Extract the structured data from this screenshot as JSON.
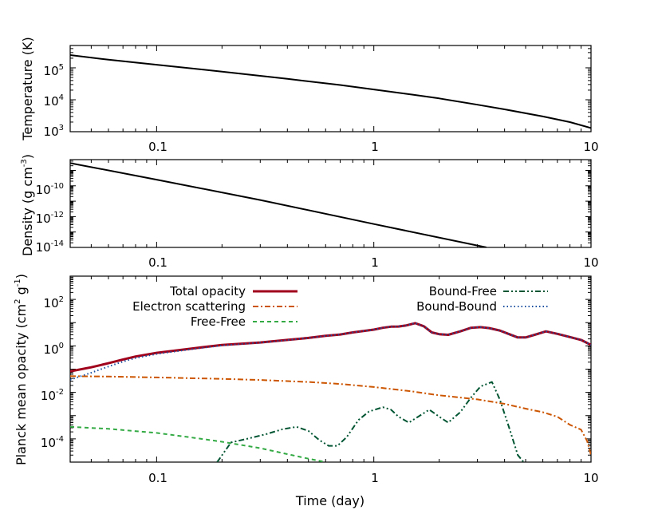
{
  "chart_data": [
    {
      "type": "line",
      "id": "temperature",
      "ylabel": "Temperature (K)",
      "xscale": "log",
      "yscale": "log",
      "xlim": [
        0.04,
        10
      ],
      "ylim": [
        1000,
        500000
      ],
      "xticks": [
        {
          "value": 0.1,
          "label": "0.1"
        },
        {
          "value": 1,
          "label": "1"
        },
        {
          "value": 10,
          "label": "10"
        }
      ],
      "yticks": [
        {
          "value": 1000,
          "base": "10",
          "exp": "3"
        },
        {
          "value": 10000,
          "base": "10",
          "exp": "4"
        },
        {
          "value": 100000,
          "base": "10",
          "exp": "5"
        }
      ],
      "series": [
        {
          "color": "#000000",
          "style": "solid",
          "x": [
            0.04,
            0.06,
            0.1,
            0.2,
            0.4,
            0.7,
            1.0,
            1.5,
            2.0,
            3.0,
            4.0,
            6.0,
            8.0,
            10.0
          ],
          "y": [
            250000,
            180000,
            125000,
            76000,
            45000,
            29000,
            21000,
            14500,
            11000,
            7000,
            5000,
            3000,
            2000,
            1300
          ]
        }
      ]
    },
    {
      "type": "line",
      "id": "density",
      "ylabel": "Density (g cm",
      "ylabel_sup": "-3",
      "ylabel_end": ")",
      "xscale": "log",
      "yscale": "log",
      "xlim": [
        0.04,
        10
      ],
      "ylim": [
        1e-14,
        5e-09
      ],
      "xticks": [
        {
          "value": 0.1,
          "label": "0.1"
        },
        {
          "value": 1,
          "label": "1"
        },
        {
          "value": 10,
          "label": "10"
        }
      ],
      "yticks": [
        {
          "value": 1e-14,
          "base": "10",
          "exp": "-14"
        },
        {
          "value": 1e-12,
          "base": "10",
          "exp": "-12"
        },
        {
          "value": 1e-10,
          "base": "10",
          "exp": "-10"
        }
      ],
      "series": [
        {
          "color": "#000000",
          "style": "solid",
          "x": [
            0.04,
            0.1,
            0.3,
            1.0,
            3.3
          ],
          "y": [
            3e-09,
            2.5e-10,
            1.2e-11,
            3.3e-13,
            1e-14
          ]
        }
      ]
    },
    {
      "type": "line",
      "id": "opacity",
      "xlabel": "Time (day)",
      "ylabel": "Planck mean opacity (cm",
      "ylabel_sup1": "2",
      "ylabel_mid": " g",
      "ylabel_sup2": "-1",
      "ylabel_end": ")",
      "xscale": "log",
      "yscale": "log",
      "xlim": [
        0.04,
        10
      ],
      "ylim": [
        1e-05,
        1000
      ],
      "legend_position": "top",
      "xticks": [
        {
          "value": 0.1,
          "label": "0.1"
        },
        {
          "value": 1,
          "label": "1"
        },
        {
          "value": 10,
          "label": "10"
        }
      ],
      "yticks": [
        {
          "value": 0.0001,
          "base": "10",
          "exp": "-4"
        },
        {
          "value": 0.01,
          "base": "10",
          "exp": "-2"
        },
        {
          "value": 1,
          "base": "10",
          "exp": "0"
        },
        {
          "value": 100,
          "base": "10",
          "exp": "2"
        }
      ],
      "series": [
        {
          "name": "Total opacity",
          "color": "#a0001c",
          "style": "solid",
          "width": 3,
          "x": [
            0.04,
            0.05,
            0.06,
            0.07,
            0.08,
            0.1,
            0.15,
            0.2,
            0.3,
            0.4,
            0.5,
            0.6,
            0.7,
            0.8,
            1.0,
            1.1,
            1.2,
            1.3,
            1.4,
            1.55,
            1.7,
            1.85,
            2.0,
            2.2,
            2.5,
            2.8,
            3.1,
            3.4,
            3.8,
            4.2,
            4.6,
            5.0,
            5.5,
            6.2,
            7.0,
            8.0,
            9.0,
            10.0
          ],
          "y": [
            0.08,
            0.12,
            0.18,
            0.26,
            0.35,
            0.5,
            0.8,
            1.1,
            1.4,
            1.8,
            2.2,
            2.7,
            3.1,
            3.8,
            5.0,
            6.0,
            6.7,
            6.8,
            7.5,
            9.5,
            7.0,
            3.8,
            3.2,
            3.0,
            4.2,
            6.0,
            6.4,
            5.8,
            4.6,
            3.2,
            2.3,
            2.3,
            3.0,
            4.2,
            3.3,
            2.4,
            1.8,
            1.1
          ]
        },
        {
          "name": "Electron scattering",
          "color": "#cc5500",
          "style": "dashdot",
          "x": [
            0.04,
            0.06,
            0.1,
            0.2,
            0.3,
            0.5,
            0.7,
            1.0,
            1.5,
            2.0,
            2.5,
            3.0,
            4.0,
            5.0,
            6.0,
            7.0,
            8.0,
            9.0,
            9.6,
            10.0
          ],
          "y": [
            0.05,
            0.048,
            0.044,
            0.038,
            0.034,
            0.028,
            0.023,
            0.017,
            0.011,
            0.0075,
            0.006,
            0.005,
            0.0032,
            0.002,
            0.0014,
            0.0009,
            0.0004,
            0.00025,
            8e-05,
            2e-05
          ]
        },
        {
          "name": "Free-Free",
          "color": "#33aa44",
          "style": "dashed",
          "x": [
            0.04,
            0.06,
            0.1,
            0.15,
            0.2,
            0.3,
            0.4,
            0.5,
            0.6
          ],
          "y": [
            0.00033,
            0.00027,
            0.00018,
            0.00011,
            7.5e-05,
            4e-05,
            2.2e-05,
            1.4e-05,
            1e-05
          ]
        },
        {
          "name": "Bound-Free",
          "color": "#005533",
          "style": "dashdotdot",
          "x": [
            0.19,
            0.22,
            0.26,
            0.32,
            0.38,
            0.44,
            0.5,
            0.56,
            0.62,
            0.68,
            0.75,
            0.85,
            0.95,
            1.1,
            1.2,
            1.3,
            1.45,
            1.6,
            1.8,
            2.0,
            2.2,
            2.5,
            2.8,
            3.1,
            3.5,
            3.8,
            4.2,
            4.6,
            4.9
          ],
          "y": [
            1e-05,
            7e-05,
            0.0001,
            0.00016,
            0.00026,
            0.00033,
            0.00022,
            9e-05,
            5e-05,
            5e-05,
            0.00012,
            0.00065,
            0.0015,
            0.0023,
            0.0018,
            0.0009,
            0.0005,
            0.0009,
            0.0018,
            0.0009,
            0.0005,
            0.0014,
            0.006,
            0.018,
            0.028,
            0.005,
            0.0003,
            2e-05,
            1e-05
          ]
        },
        {
          "name": "Bound-Bound",
          "color": "#1a4fa0",
          "style": "dotted",
          "x": [
            0.04,
            0.05,
            0.06,
            0.07,
            0.08,
            0.1,
            0.15,
            0.2,
            0.3,
            0.4,
            0.5,
            0.6,
            0.7,
            0.8,
            1.0,
            1.1,
            1.2,
            1.3,
            1.4,
            1.55,
            1.7,
            1.85,
            2.0,
            2.2,
            2.5,
            2.8,
            3.1,
            3.4,
            3.8,
            4.2,
            4.6,
            5.0,
            5.5,
            6.2,
            7.0,
            8.0,
            9.0,
            10.0
          ],
          "y": [
            0.035,
            0.07,
            0.13,
            0.21,
            0.3,
            0.45,
            0.75,
            1.05,
            1.38,
            1.78,
            2.2,
            2.7,
            3.1,
            3.8,
            5.0,
            6.0,
            6.7,
            6.8,
            7.5,
            9.5,
            7.0,
            3.8,
            3.2,
            3.0,
            4.2,
            6.0,
            6.4,
            5.8,
            4.6,
            3.2,
            2.3,
            2.3,
            3.0,
            4.2,
            3.3,
            2.4,
            1.8,
            1.1
          ]
        }
      ]
    }
  ]
}
